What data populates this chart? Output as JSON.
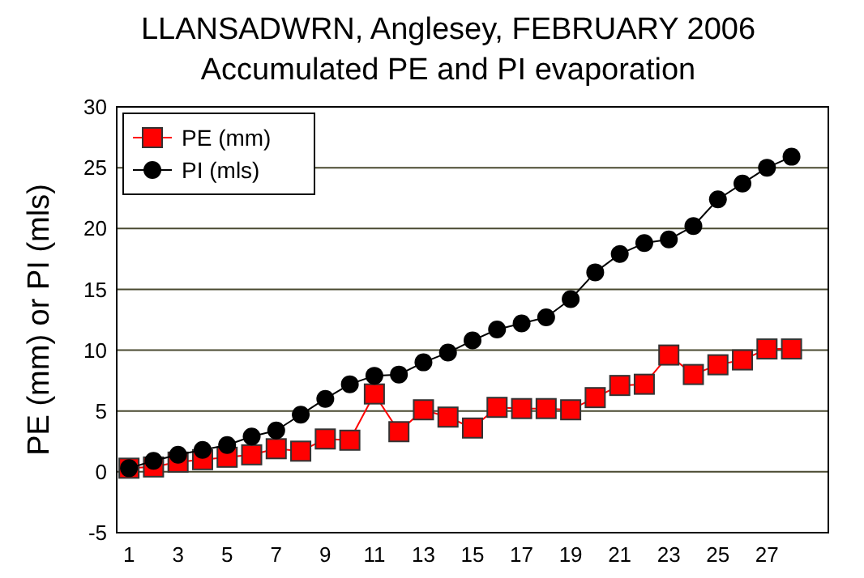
{
  "chart_data": {
    "type": "line",
    "title": "LLANSADWRN, Anglesey, FEBRUARY 2006",
    "subtitle": "Accumulated PE and PI evaporation",
    "ylabel": "PE (mm) or PI (mls)",
    "x": [
      1,
      2,
      3,
      4,
      5,
      6,
      7,
      8,
      9,
      10,
      11,
      12,
      13,
      14,
      15,
      16,
      17,
      18,
      19,
      20,
      21,
      22,
      23,
      24,
      25,
      26,
      27,
      28
    ],
    "xlim": [
      0.5,
      29.5
    ],
    "xticks": [
      1,
      3,
      5,
      7,
      9,
      11,
      13,
      15,
      17,
      19,
      21,
      23,
      25,
      27
    ],
    "series": [
      {
        "name": "PE (mm)",
        "color": "#ff0000",
        "marker": "square",
        "values": [
          0.3,
          0.4,
          0.8,
          1.0,
          1.2,
          1.4,
          1.9,
          1.7,
          2.7,
          2.6,
          6.4,
          3.3,
          5.1,
          4.5,
          3.6,
          5.3,
          5.2,
          5.2,
          5.1,
          6.1,
          7.1,
          7.2,
          9.6,
          8.0,
          8.8,
          9.2,
          10.1,
          10.1
        ]
      },
      {
        "name": "PI (mls)",
        "color": "#000000",
        "marker": "circle",
        "values": [
          0.3,
          0.9,
          1.4,
          1.8,
          2.2,
          2.9,
          3.4,
          4.7,
          6.0,
          7.2,
          7.9,
          8.0,
          9.0,
          9.8,
          10.8,
          11.7,
          12.2,
          12.7,
          14.2,
          16.4,
          17.9,
          18.8,
          19.1,
          20.2,
          22.4,
          23.7,
          25.0,
          25.9
        ]
      }
    ],
    "ylim": [
      -5,
      30
    ],
    "yticks": [
      -5,
      0,
      5,
      10,
      15,
      20,
      25,
      30
    ],
    "grid": "y",
    "legend": "top left"
  }
}
